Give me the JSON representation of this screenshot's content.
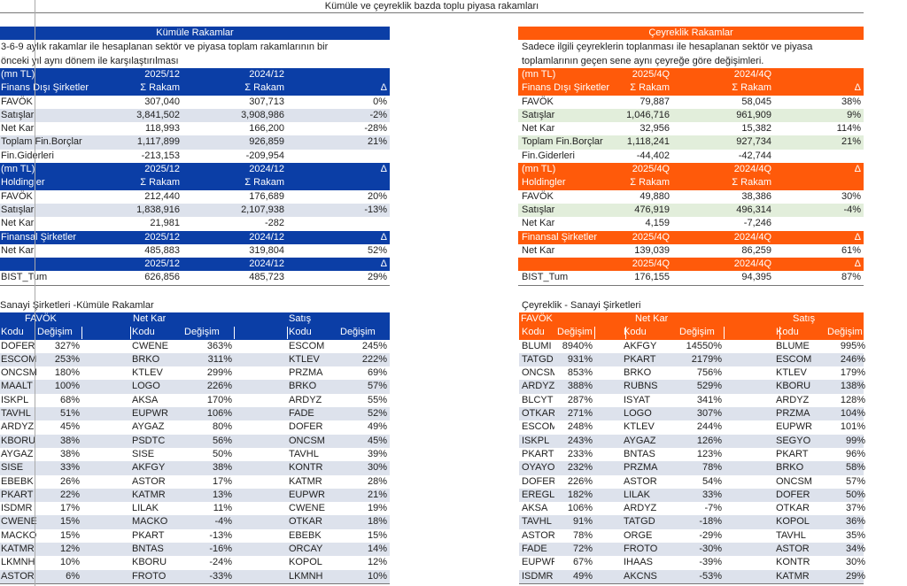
{
  "title": "Kümüle ve çeyreklik bazda toplu piyasa rakamları",
  "colors": {
    "kumule_header": "#0b3ea6",
    "ceyreklik_header": "#ff5a0a",
    "stripe_grey": "#dde2ec",
    "stripe_green": "#e2eedb"
  },
  "kumule": {
    "banner": "Kümüle Rakamlar",
    "desc": [
      "3-6-9 aylık rakamlar ile hesaplanan sektör ve piyasa toplam rakamlarının bir",
      "önceki yıl aynı dönem ile karşılaştırılması"
    ],
    "rows": [
      {
        "kind": "head",
        "cells": [
          "(mn TL)",
          "2025/12",
          "2024/12",
          ""
        ]
      },
      {
        "kind": "head",
        "cells": [
          "Finans Dışı Şirketler",
          "Σ Rakam",
          "Σ Rakam",
          "Δ"
        ]
      },
      {
        "kind": "data",
        "cells": [
          "FAVÖK",
          "307,040",
          "307,713",
          "0%"
        ]
      },
      {
        "kind": "alt",
        "cells": [
          "Satışlar",
          "3,841,502",
          "3,908,986",
          "-2%"
        ]
      },
      {
        "kind": "data",
        "cells": [
          "Net Kar",
          "118,993",
          "166,200",
          "-28%"
        ]
      },
      {
        "kind": "alt",
        "cells": [
          "Toplam Fin.Borçlar",
          "1,117,899",
          "926,859",
          "21%"
        ]
      },
      {
        "kind": "data",
        "cells": [
          "Fin.Giderleri",
          "-213,153",
          "-209,954",
          ""
        ]
      },
      {
        "kind": "head",
        "cells": [
          "(mn TL)",
          "2025/12",
          "2024/12",
          "Δ"
        ]
      },
      {
        "kind": "head",
        "cells": [
          "Holdingler",
          "Σ Rakam",
          "Σ Rakam",
          ""
        ]
      },
      {
        "kind": "data",
        "cells": [
          "FAVÖK",
          "212,440",
          "176,689",
          "20%"
        ]
      },
      {
        "kind": "alt",
        "cells": [
          "Satışlar",
          "1,838,916",
          "2,107,938",
          "-13%"
        ]
      },
      {
        "kind": "data",
        "cells": [
          "Net Kar",
          "21,981",
          "-282",
          ""
        ]
      },
      {
        "kind": "head",
        "cells": [
          "Finansal Şirketler",
          "2025/12",
          "2024/12",
          "Δ"
        ]
      },
      {
        "kind": "data",
        "cells": [
          "Net Kar",
          "485,883",
          "319,804",
          "52%"
        ]
      },
      {
        "kind": "head",
        "cells": [
          "",
          "2025/12",
          "2024/12",
          "Δ"
        ]
      },
      {
        "kind": "data",
        "cells": [
          "BIST_Tum",
          "626,856",
          "485,723",
          "29%"
        ]
      }
    ]
  },
  "ceyreklik": {
    "banner": "Çeyreklik Rakamlar",
    "desc": [
      "Sadece ilgili çeyreklerin toplanması ile hesaplanan sektör ve piyasa",
      "toplamlarının geçen sene aynı çeyreğe göre değişimleri."
    ],
    "rows": [
      {
        "kind": "head",
        "cells": [
          "(mn TL)",
          "2025/4Q",
          "2024/4Q",
          ""
        ]
      },
      {
        "kind": "head",
        "cells": [
          "Finans Dışı Şirketler",
          "Σ Rakam",
          "Σ Rakam",
          "Δ"
        ]
      },
      {
        "kind": "data",
        "cells": [
          "FAVÖK",
          "79,887",
          "58,045",
          "38%"
        ]
      },
      {
        "kind": "alt",
        "cells": [
          "Satışlar",
          "1,046,716",
          "961,909",
          "9%"
        ]
      },
      {
        "kind": "data",
        "cells": [
          "Net Kar",
          "32,956",
          "15,382",
          "114%"
        ]
      },
      {
        "kind": "alt",
        "cells": [
          "Toplam Fin.Borçlar",
          "1,118,241",
          "927,734",
          "21%"
        ]
      },
      {
        "kind": "data",
        "cells": [
          "Fin.Giderleri",
          "-44,402",
          "-42,744",
          ""
        ]
      },
      {
        "kind": "head",
        "cells": [
          "(mn TL)",
          "2025/4Q",
          "2024/4Q",
          "Δ"
        ]
      },
      {
        "kind": "head",
        "cells": [
          "Holdingler",
          "Σ Rakam",
          "Σ Rakam",
          ""
        ]
      },
      {
        "kind": "data",
        "cells": [
          "FAVÖK",
          "49,880",
          "38,386",
          "30%"
        ]
      },
      {
        "kind": "alt",
        "cells": [
          "Satışlar",
          "476,919",
          "496,314",
          "-4%"
        ]
      },
      {
        "kind": "data",
        "cells": [
          "Net Kar",
          "4,159",
          "-7,246",
          ""
        ]
      },
      {
        "kind": "head",
        "cells": [
          "Finansal Şirketler",
          "2025/4Q",
          "2024/4Q",
          "Δ"
        ]
      },
      {
        "kind": "data",
        "cells": [
          "Net Kar",
          "139,039",
          "86,259",
          "61%"
        ]
      },
      {
        "kind": "head",
        "cells": [
          "",
          "2025/4Q",
          "2024/4Q",
          "Δ"
        ]
      },
      {
        "kind": "data",
        "cells": [
          "BIST_Tum",
          "176,155",
          "94,395",
          "87%"
        ]
      }
    ]
  },
  "sanayi_kumule": {
    "title": "Sanayi Şirketleri -Kümüle Rakamlar",
    "groups": [
      "FAVÖK",
      "Net Kar",
      "Satış"
    ],
    "col_kodu": "Kodu",
    "col_degisim": "Değişim",
    "rows": [
      [
        "DOFER",
        "327%",
        "CWENE",
        "363%",
        "ESCOM",
        "245%"
      ],
      [
        "ESCOM",
        "253%",
        "BRKO",
        "311%",
        "KTLEV",
        "222%"
      ],
      [
        "ONCSM",
        "180%",
        "KTLEV",
        "299%",
        "PRZMA",
        "69%"
      ],
      [
        "MAALT",
        "100%",
        "LOGO",
        "226%",
        "BRKO",
        "57%"
      ],
      [
        "ISKPL",
        "68%",
        "AKSA",
        "170%",
        "ARDYZ",
        "55%"
      ],
      [
        "TAVHL",
        "51%",
        "EUPWR",
        "106%",
        "FADE",
        "52%"
      ],
      [
        "ARDYZ",
        "45%",
        "AYGAZ",
        "80%",
        "DOFER",
        "49%"
      ],
      [
        "KBORU",
        "38%",
        "PSDTC",
        "56%",
        "ONCSM",
        "45%"
      ],
      [
        "AYGAZ",
        "38%",
        "SISE",
        "50%",
        "TAVHL",
        "39%"
      ],
      [
        "SISE",
        "33%",
        "AKFGY",
        "38%",
        "KONTR",
        "30%"
      ],
      [
        "EBEBK",
        "26%",
        "ASTOR",
        "17%",
        "KATMR",
        "28%"
      ],
      [
        "PKART",
        "22%",
        "KATMR",
        "13%",
        "EUPWR",
        "21%"
      ],
      [
        "ISDMR",
        "17%",
        "LILAK",
        "11%",
        "CWENE",
        "19%"
      ],
      [
        "CWENE",
        "15%",
        "MACKO",
        "-4%",
        "OTKAR",
        "18%"
      ],
      [
        "MACKO",
        "15%",
        "PKART",
        "-13%",
        "EBEBK",
        "15%"
      ],
      [
        "KATMR",
        "12%",
        "BNTAS",
        "-16%",
        "ORCAY",
        "14%"
      ],
      [
        "LKMNH",
        "10%",
        "KBORU",
        "-24%",
        "KOPOL",
        "12%"
      ],
      [
        "ASTOR",
        "6%",
        "FROTO",
        "-33%",
        "LKMNH",
        "10%"
      ]
    ]
  },
  "sanayi_ceyreklik": {
    "title": "Çeyreklik - Sanayi Şirketleri",
    "groups": [
      "FAVÖK",
      "Net Kar",
      "Satış"
    ],
    "col_kodu": "Kodu",
    "col_degisim": "Değişim",
    "rows": [
      [
        "BLUMI",
        "8940%",
        "AKFGY",
        "14550%",
        "BLUME",
        "995%"
      ],
      [
        "TATGD",
        "931%",
        "PKART",
        "2179%",
        "ESCOM",
        "246%"
      ],
      [
        "ONCSM",
        "853%",
        "BRKO",
        "756%",
        "KTLEV",
        "179%"
      ],
      [
        "ARDYZ",
        "388%",
        "RUBNS",
        "529%",
        "KBORU",
        "138%"
      ],
      [
        "BLCYT",
        "287%",
        "ISYAT",
        "341%",
        "ARDYZ",
        "128%"
      ],
      [
        "OTKAR",
        "271%",
        "LOGO",
        "307%",
        "PRZMA",
        "104%"
      ],
      [
        "ESCOM",
        "248%",
        "KTLEV",
        "244%",
        "EUPWR",
        "101%"
      ],
      [
        "ISKPL",
        "243%",
        "AYGAZ",
        "126%",
        "SEGYO",
        "99%"
      ],
      [
        "PKART",
        "233%",
        "BNTAS",
        "123%",
        "PKART",
        "96%"
      ],
      [
        "OYAYO",
        "232%",
        "PRZMA",
        "78%",
        "BRKO",
        "58%"
      ],
      [
        "DOFER",
        "226%",
        "ASTOR",
        "54%",
        "ONCSM",
        "57%"
      ],
      [
        "EREGL",
        "182%",
        "LILAK",
        "33%",
        "DOFER",
        "50%"
      ],
      [
        "AKSA",
        "106%",
        "ARDYZ",
        "-7%",
        "OTKAR",
        "37%"
      ],
      [
        "TAVHL",
        "91%",
        "TATGD",
        "-18%",
        "KOPOL",
        "36%"
      ],
      [
        "ASTOR",
        "78%",
        "ORGE",
        "-29%",
        "TAVHL",
        "35%"
      ],
      [
        "FADE",
        "72%",
        "FROTO",
        "-30%",
        "ASTOR",
        "34%"
      ],
      [
        "EUPWR",
        "67%",
        "IHAAS",
        "-39%",
        "KONTR",
        "30%"
      ],
      [
        "ISDMR",
        "49%",
        "AKCNS",
        "-53%",
        "KATMR",
        "29%"
      ]
    ]
  }
}
